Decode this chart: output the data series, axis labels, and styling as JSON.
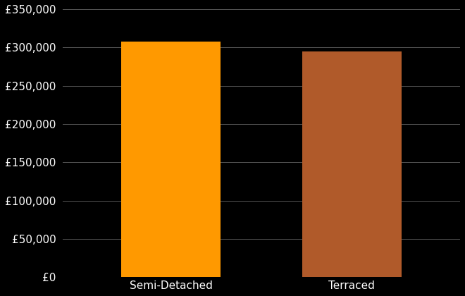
{
  "categories": [
    "Semi-Detached",
    "Terraced"
  ],
  "values": [
    308000,
    295000
  ],
  "bar_colors": [
    "#FF9900",
    "#B05A2A"
  ],
  "background_color": "#000000",
  "text_color": "#FFFFFF",
  "ylim": [
    0,
    350000
  ],
  "yticks": [
    0,
    50000,
    100000,
    150000,
    200000,
    250000,
    300000,
    350000
  ],
  "grid_color": "#555555",
  "bar_width": 0.55,
  "tick_fontsize": 11,
  "label_fontsize": 11,
  "figwidth": 6.6,
  "figheight": 4.2,
  "dpi": 100
}
